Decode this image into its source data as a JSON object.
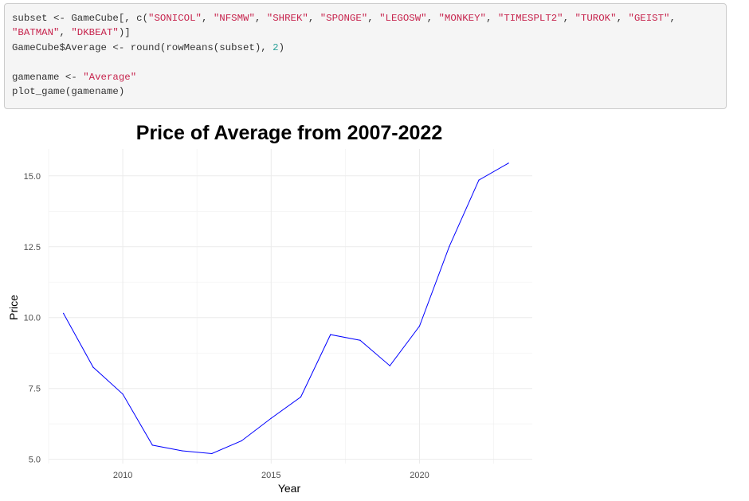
{
  "code": {
    "lines": [
      [
        {
          "t": "subset <- GameCube[, c(",
          "k": "plain"
        },
        {
          "t": "\"SONICOL\"",
          "k": "str"
        },
        {
          "t": ", ",
          "k": "plain"
        },
        {
          "t": "\"NFSMW\"",
          "k": "str"
        },
        {
          "t": ", ",
          "k": "plain"
        },
        {
          "t": "\"SHREK\"",
          "k": "str"
        },
        {
          "t": ", ",
          "k": "plain"
        },
        {
          "t": "\"SPONGE\"",
          "k": "str"
        },
        {
          "t": ", ",
          "k": "plain"
        },
        {
          "t": "\"LEGOSW\"",
          "k": "str"
        },
        {
          "t": ", ",
          "k": "plain"
        },
        {
          "t": "\"MONKEY\"",
          "k": "str"
        },
        {
          "t": ", ",
          "k": "plain"
        },
        {
          "t": "\"TIMESPLT2\"",
          "k": "str"
        },
        {
          "t": ", ",
          "k": "plain"
        },
        {
          "t": "\"TUROK\"",
          "k": "str"
        },
        {
          "t": ", ",
          "k": "plain"
        },
        {
          "t": "\"GEIST\"",
          "k": "str"
        },
        {
          "t": ",",
          "k": "plain"
        }
      ],
      [
        {
          "t": "\"BATMAN\"",
          "k": "str"
        },
        {
          "t": ", ",
          "k": "plain"
        },
        {
          "t": "\"DKBEAT\"",
          "k": "str"
        },
        {
          "t": ")]",
          "k": "plain"
        }
      ],
      [
        {
          "t": "GameCube$Average <- round(rowMeans(subset), ",
          "k": "plain"
        },
        {
          "t": "2",
          "k": "num"
        },
        {
          "t": ")",
          "k": "plain"
        }
      ],
      [],
      [
        {
          "t": "gamename <- ",
          "k": "plain"
        },
        {
          "t": "\"Average\"",
          "k": "str"
        }
      ],
      [
        {
          "t": "plot_game(gamename)",
          "k": "plain"
        }
      ]
    ]
  },
  "chart_data": {
    "type": "line",
    "title": "Price of Average from 2007-2022",
    "xlabel": "Year",
    "ylabel": "Price",
    "xlim": [
      2007.5,
      2023.8
    ],
    "ylim": [
      4.85,
      15.95
    ],
    "x_ticks": [
      2010,
      2015,
      2020
    ],
    "x_tick_labels": [
      "2010",
      "2015",
      "2020"
    ],
    "x_minor": [
      2007.5,
      2012.5,
      2017.5,
      2022.5
    ],
    "y_ticks": [
      5.0,
      7.5,
      10.0,
      12.5,
      15.0
    ],
    "y_tick_labels": [
      "5.0",
      "7.5",
      "10.0",
      "12.5",
      "15.0"
    ],
    "y_minor": [
      6.25,
      8.75,
      11.25,
      13.75
    ],
    "grid": true,
    "series": [
      {
        "color": "#0000ff",
        "x": [
          2008,
          2009,
          2010,
          2011,
          2012,
          2013,
          2014,
          2015,
          2016,
          2017,
          2018,
          2019,
          2020,
          2021,
          2022,
          2023
        ],
        "y": [
          10.15,
          8.25,
          7.3,
          5.5,
          5.3,
          5.2,
          5.65,
          6.45,
          7.2,
          9.4,
          9.2,
          8.3,
          9.7,
          12.5,
          14.85,
          15.45
        ]
      }
    ]
  }
}
